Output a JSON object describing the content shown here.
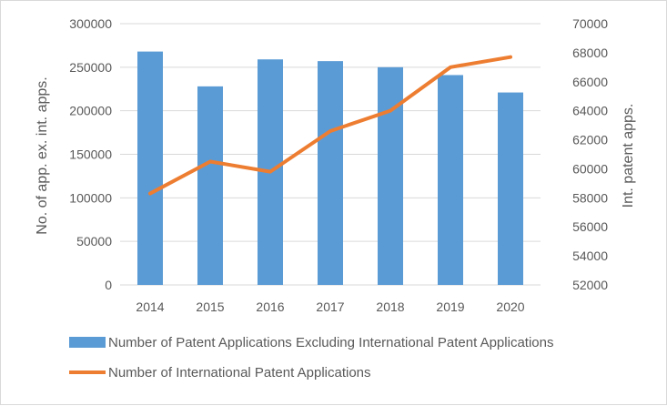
{
  "chart_data": {
    "type": "bar",
    "categories": [
      "2014",
      "2015",
      "2016",
      "2017",
      "2018",
      "2019",
      "2020"
    ],
    "series": [
      {
        "name": "Number of Patent Applications Excluding International Patent Applications",
        "type": "bar",
        "axis": "left",
        "color": "#5b9bd5",
        "values": [
          268000,
          228000,
          259000,
          257000,
          250000,
          241000,
          221000
        ]
      },
      {
        "name": "Number of International Patent Applications",
        "type": "line",
        "axis": "right",
        "color": "#ed7d31",
        "values": [
          58300,
          60500,
          59800,
          62600,
          64000,
          67000,
          67700
        ]
      }
    ],
    "ylabel": "No. of app. ex. int. apps.",
    "y2label": "Int. patent apps.",
    "ylim": [
      0,
      300000
    ],
    "y2lim": [
      52000,
      70000
    ],
    "yticks": [
      "0",
      "50000",
      "100000",
      "150000",
      "200000",
      "250000",
      "300000"
    ],
    "y2ticks": [
      "52000",
      "54000",
      "56000",
      "58000",
      "60000",
      "62000",
      "64000",
      "66000",
      "68000",
      "70000"
    ],
    "grid": true,
    "legend": "bottom"
  }
}
